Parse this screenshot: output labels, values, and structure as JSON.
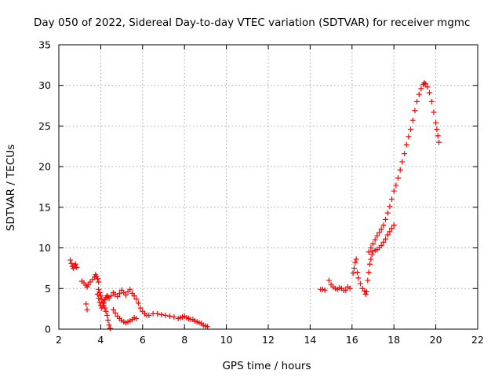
{
  "chart_data": {
    "type": "scatter",
    "title": "Day 050 of 2022, Sidereal Day-to-day VTEC variation (SDTVAR) for receiver mgmc",
    "xlabel": "GPS time / hours",
    "ylabel": "SDTVAR / TECUs",
    "xlim": [
      2,
      22
    ],
    "ylim": [
      0,
      35
    ],
    "xticks": [
      2,
      4,
      6,
      8,
      10,
      12,
      14,
      16,
      18,
      20,
      22
    ],
    "yticks": [
      0,
      5,
      10,
      15,
      20,
      25,
      30,
      35
    ],
    "grid": true,
    "marker": "plus",
    "series": [
      {
        "name": "SDTVAR",
        "color": "#ff0000",
        "x": [
          2.55,
          2.6,
          2.65,
          2.7,
          2.75,
          2.8,
          2.85,
          3.1,
          3.2,
          3.3,
          3.35,
          3.4,
          3.5,
          3.6,
          3.7,
          3.75,
          3.8,
          3.85,
          3.9,
          3.3,
          3.35,
          3.9,
          3.95,
          4.0,
          4.05,
          4.1,
          4.15,
          4.2,
          4.25,
          4.3,
          4.35,
          4.4,
          4.45,
          3.85,
          3.9,
          3.95,
          4.0,
          4.05,
          4.1,
          4.15,
          4.2,
          4.25,
          4.3,
          4.35,
          4.4,
          4.5,
          4.6,
          4.7,
          4.8,
          4.9,
          5.0,
          5.1,
          5.2,
          5.3,
          5.4,
          5.5,
          5.6,
          5.7,
          5.8,
          5.9,
          6.0,
          6.1,
          6.2,
          4.6,
          4.7,
          4.8,
          4.9,
          5.0,
          5.1,
          5.2,
          5.3,
          5.4,
          5.5,
          5.6,
          5.7,
          6.3,
          6.5,
          6.7,
          6.9,
          7.1,
          7.3,
          7.5,
          7.7,
          7.8,
          7.9,
          8.0,
          8.1,
          8.2,
          8.3,
          8.4,
          8.5,
          8.6,
          8.7,
          8.8,
          8.9,
          9.0,
          9.1,
          14.5,
          14.6,
          14.7,
          14.9,
          15.0,
          15.1,
          15.2,
          15.3,
          15.4,
          15.5,
          15.6,
          15.7,
          15.8,
          15.9,
          16.05,
          16.1,
          16.15,
          16.2,
          16.25,
          16.3,
          16.4,
          16.5,
          16.6,
          16.65,
          16.7,
          16.75,
          16.8,
          16.85,
          16.9,
          16.95,
          17.0,
          17.1,
          17.2,
          17.3,
          17.4,
          17.5,
          17.6,
          17.7,
          17.8,
          17.9,
          18.0,
          16.8,
          16.9,
          17.0,
          17.1,
          17.2,
          17.3,
          17.4,
          17.5,
          17.6,
          17.7,
          17.8,
          17.9,
          18.0,
          18.1,
          18.2,
          18.3,
          18.4,
          18.5,
          18.6,
          18.7,
          18.8,
          18.9,
          19.0,
          19.1,
          19.2,
          19.3,
          19.4,
          19.45,
          19.5,
          19.6,
          19.7,
          19.8,
          19.9,
          20.0,
          20.05,
          20.1,
          20.15
        ],
        "y": [
          8.5,
          8.1,
          7.7,
          7.5,
          7.8,
          8.0,
          7.6,
          5.9,
          5.7,
          5.4,
          5.2,
          5.5,
          5.8,
          6.1,
          6.4,
          6.7,
          6.5,
          6.2,
          5.8,
          3.1,
          2.4,
          4.9,
          4.5,
          4.1,
          3.7,
          3.3,
          2.9,
          2.6,
          2.2,
          1.7,
          1.1,
          0.5,
          0.1,
          4.3,
          3.8,
          3.3,
          2.9,
          2.6,
          2.9,
          3.2,
          3.6,
          3.9,
          4.1,
          4.0,
          3.8,
          4.1,
          4.5,
          4.3,
          4.0,
          4.4,
          4.8,
          4.5,
          4.2,
          4.6,
          4.9,
          4.4,
          4.1,
          3.7,
          3.2,
          2.6,
          2.2,
          1.9,
          1.7,
          2.4,
          2.0,
          1.6,
          1.3,
          1.1,
          0.9,
          0.8,
          0.9,
          1.0,
          1.2,
          1.4,
          1.3,
          1.7,
          1.9,
          1.9,
          1.8,
          1.7,
          1.6,
          1.5,
          1.3,
          1.4,
          1.5,
          1.6,
          1.4,
          1.3,
          1.2,
          1.2,
          1.0,
          0.9,
          0.8,
          0.7,
          0.5,
          0.4,
          0.3,
          4.9,
          4.9,
          4.8,
          6.0,
          5.5,
          5.2,
          5.0,
          4.9,
          5.1,
          5.0,
          4.8,
          4.8,
          5.2,
          5.0,
          6.9,
          7.5,
          8.2,
          8.6,
          7.0,
          6.3,
          5.6,
          5.0,
          4.7,
          4.3,
          4.6,
          6.0,
          7.0,
          8.0,
          8.6,
          9.2,
          9.6,
          9.7,
          9.8,
          10.0,
          10.3,
          10.7,
          11.1,
          11.6,
          12.0,
          12.4,
          12.8,
          9.5,
          10.0,
          10.5,
          11.0,
          11.5,
          11.9,
          12.3,
          12.8,
          13.5,
          14.3,
          15.1,
          16.0,
          17.0,
          17.7,
          18.6,
          19.6,
          20.6,
          21.6,
          22.7,
          23.7,
          24.6,
          25.7,
          26.9,
          28.0,
          28.9,
          29.6,
          30.1,
          30.3,
          30.2,
          29.8,
          29.1,
          28.0,
          26.7,
          25.4,
          24.6,
          23.8,
          23.0
        ]
      }
    ]
  }
}
